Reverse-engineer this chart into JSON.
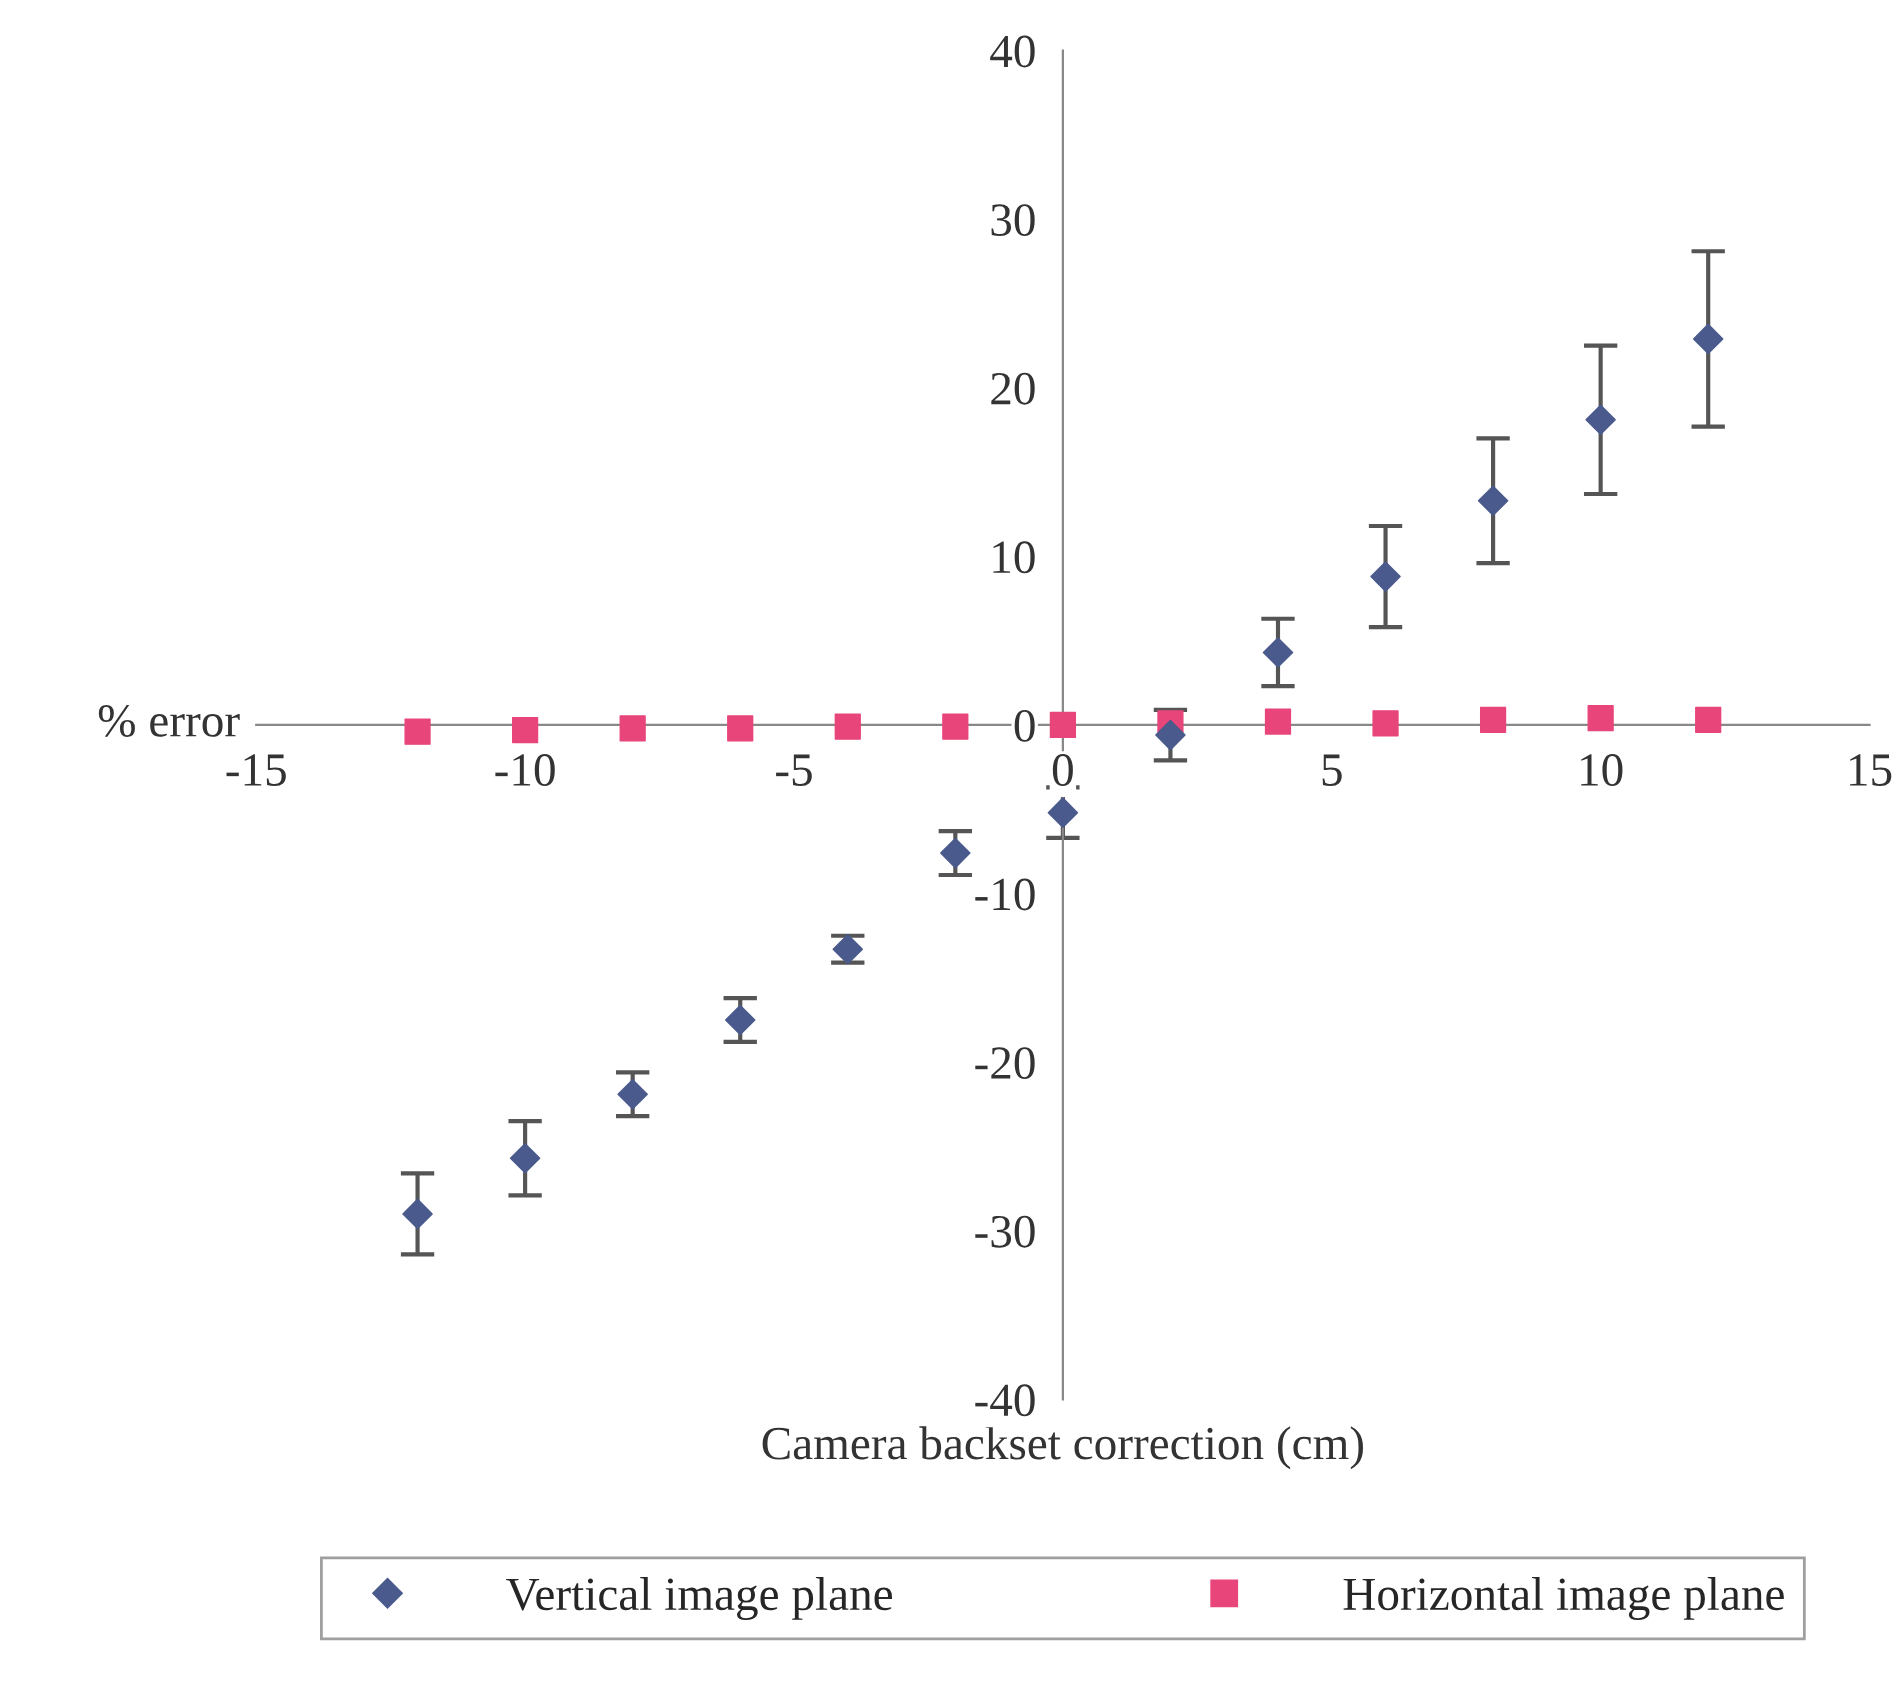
{
  "chart_data": {
    "type": "scatter",
    "xlabel": "Camera backset correction (cm)",
    "ylabel": "% error",
    "x": [
      -12,
      -10,
      -8,
      -6,
      -4,
      -2,
      0,
      2,
      4,
      6,
      8,
      10,
      12
    ],
    "series": [
      {
        "name": "Vertical image plane",
        "color": "#4a5a8c",
        "marker": "diamond",
        "values": [
          -29.0,
          -25.7,
          -21.9,
          -17.5,
          -13.3,
          -7.6,
          -5.2,
          -0.6,
          4.3,
          8.8,
          13.3,
          18.1,
          22.9
        ],
        "errors": [
          2.4,
          2.2,
          1.3,
          1.3,
          0.8,
          1.3,
          1.5,
          1.5,
          2.0,
          3.0,
          3.7,
          4.4,
          5.2
        ]
      },
      {
        "name": "Horizontal image plane",
        "color": "#e8457a",
        "marker": "square",
        "values": [
          -0.4,
          -0.3,
          -0.2,
          -0.2,
          -0.1,
          -0.1,
          0,
          0.1,
          0.2,
          0.1,
          0.3,
          0.4,
          0.3
        ]
      }
    ],
    "xlim": [
      -15,
      15
    ],
    "xticks": [
      -15,
      -10,
      -5,
      0,
      5,
      10,
      15
    ],
    "ylim": [
      -40,
      40
    ],
    "yticks": [
      -40,
      -30,
      -20,
      -10,
      0,
      10,
      20,
      30,
      40
    ],
    "grid": false,
    "legend": "bottom"
  }
}
